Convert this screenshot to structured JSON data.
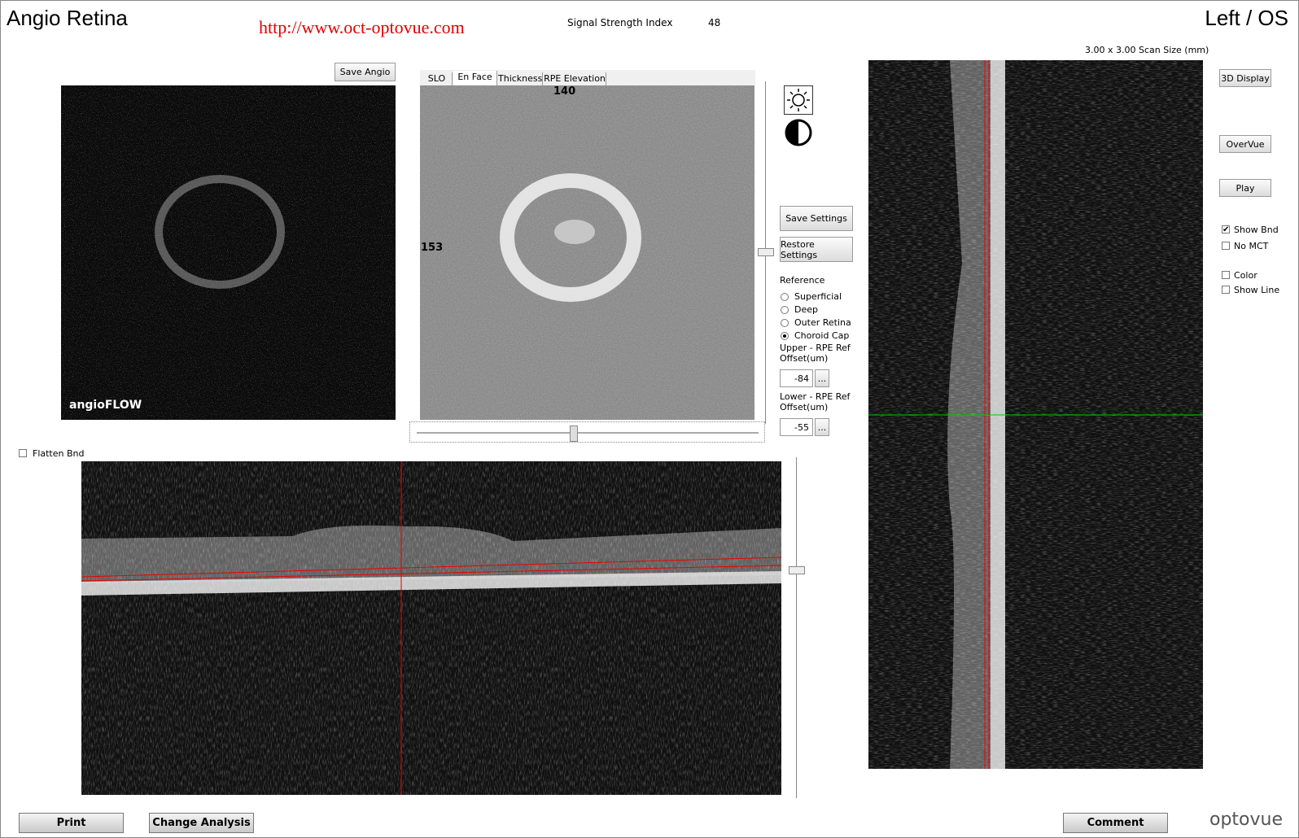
{
  "header": {
    "title": "Angio Retina",
    "url": "http://www.oct-optovue.com",
    "signal_label": "Signal Strength Index",
    "signal_value": 48,
    "eye": "Left / OS",
    "scan_size": "3.00 x 3.00 Scan Size (mm)"
  },
  "angio": {
    "save_button": "Save Angio",
    "logo": "angioFLOW"
  },
  "enface": {
    "tabs": [
      "SLO",
      "En Face",
      "Thickness",
      "RPE Elevation"
    ],
    "active_tab": 1,
    "top_label": 140,
    "left_label": 153
  },
  "settings": {
    "save": "Save Settings",
    "restore": "Restore Settings",
    "reference_label": "Reference",
    "references": [
      "Superficial",
      "Deep",
      "Outer Retina",
      "Choroid Cap"
    ],
    "selected": 3,
    "upper_label": "Upper - RPE Ref Offset(um)",
    "upper_value": -84,
    "lower_label": "Lower - RPE Ref Offset(um)",
    "lower_value": -55,
    "more": "..."
  },
  "bscan": {
    "flatten_label": "Flatten Bnd",
    "flatten_checked": false
  },
  "side": {
    "buttons": [
      "3D Display",
      "OverVue",
      "Play"
    ],
    "checkboxes": [
      {
        "label": "Show Bnd",
        "checked": true
      },
      {
        "label": "No MCT",
        "checked": false
      },
      {
        "label": "Color",
        "checked": false
      },
      {
        "label": "Show Line",
        "checked": false
      }
    ]
  },
  "footer": {
    "buttons": [
      "Print",
      "Change Analysis",
      "Comment"
    ],
    "brand": "optovue"
  }
}
